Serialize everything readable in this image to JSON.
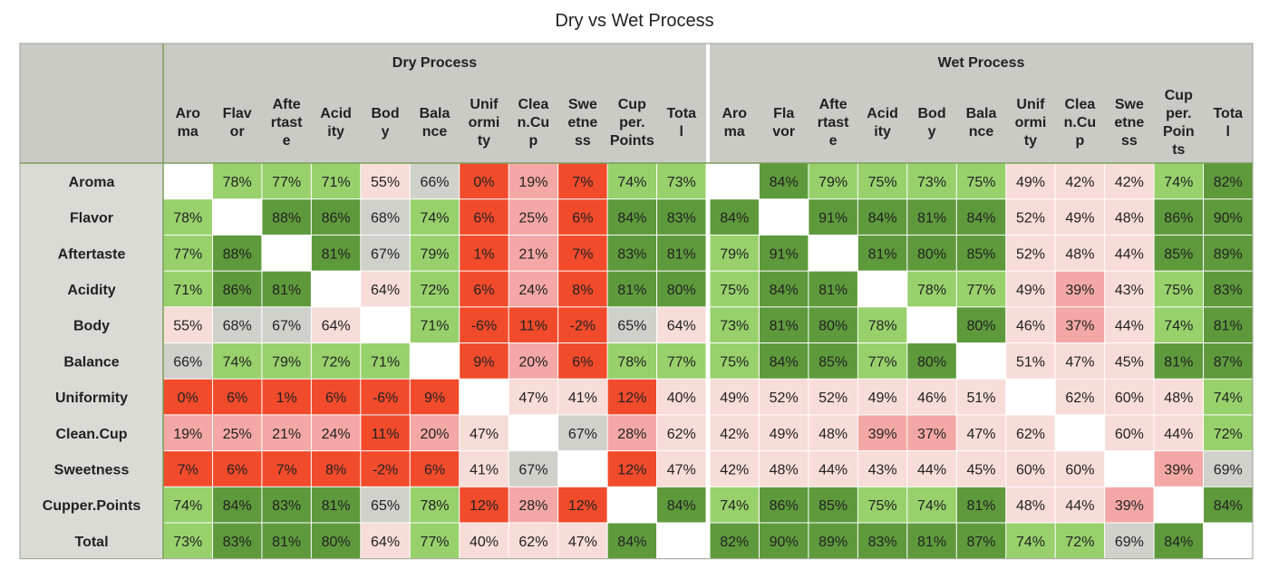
{
  "chart_data": {
    "type": "heatmap",
    "title": "Dry vs Wet Process",
    "groups": [
      {
        "name": "Dry Process",
        "columns": [
          "Aroma",
          "Flavor",
          "Aftertaste",
          "Acidity",
          "Body",
          "Balance",
          "Uniformity",
          "Clean.Cup",
          "Sweetness",
          "Cupper.Points",
          "Total"
        ],
        "values": [
          [
            null,
            78,
            77,
            71,
            55,
            66,
            0,
            19,
            7,
            74,
            73
          ],
          [
            78,
            null,
            88,
            86,
            68,
            74,
            6,
            25,
            6,
            84,
            83
          ],
          [
            77,
            88,
            null,
            81,
            67,
            79,
            1,
            21,
            7,
            83,
            81
          ],
          [
            71,
            86,
            81,
            null,
            64,
            72,
            6,
            24,
            8,
            81,
            80
          ],
          [
            55,
            68,
            67,
            64,
            null,
            71,
            -6,
            11,
            -2,
            65,
            64
          ],
          [
            66,
            74,
            79,
            72,
            71,
            null,
            9,
            20,
            6,
            78,
            77
          ],
          [
            0,
            6,
            1,
            6,
            -6,
            9,
            null,
            47,
            41,
            12,
            40
          ],
          [
            19,
            25,
            21,
            24,
            11,
            20,
            47,
            null,
            67,
            28,
            62
          ],
          [
            7,
            6,
            7,
            8,
            -2,
            6,
            41,
            67,
            null,
            12,
            47
          ],
          [
            74,
            84,
            83,
            81,
            65,
            78,
            12,
            28,
            12,
            null,
            84
          ],
          [
            73,
            83,
            81,
            80,
            64,
            77,
            40,
            62,
            47,
            84,
            null
          ]
        ]
      },
      {
        "name": "Wet Process",
        "columns": [
          "Aroma",
          "Flavor",
          "Aftertaste",
          "Acidity",
          "Body",
          "Balance",
          "Uniformity",
          "Clean.Cup",
          "Sweetness",
          "Cupper.Points",
          "Total"
        ],
        "values": [
          [
            null,
            84,
            79,
            75,
            73,
            75,
            49,
            42,
            42,
            74,
            82
          ],
          [
            84,
            null,
            91,
            84,
            81,
            84,
            52,
            49,
            48,
            86,
            90
          ],
          [
            79,
            91,
            null,
            81,
            80,
            85,
            52,
            48,
            44,
            85,
            89
          ],
          [
            75,
            84,
            81,
            null,
            78,
            77,
            49,
            39,
            43,
            75,
            83
          ],
          [
            73,
            81,
            80,
            78,
            null,
            80,
            46,
            37,
            44,
            74,
            81
          ],
          [
            75,
            84,
            85,
            77,
            80,
            null,
            51,
            47,
            45,
            81,
            87
          ],
          [
            49,
            52,
            52,
            49,
            46,
            51,
            null,
            62,
            60,
            48,
            74
          ],
          [
            42,
            49,
            48,
            39,
            37,
            47,
            62,
            null,
            60,
            44,
            72
          ],
          [
            42,
            48,
            44,
            43,
            44,
            45,
            60,
            60,
            null,
            39,
            69
          ],
          [
            74,
            86,
            85,
            75,
            74,
            81,
            48,
            44,
            39,
            null,
            84
          ],
          [
            82,
            90,
            89,
            83,
            81,
            87,
            74,
            72,
            69,
            84,
            null
          ]
        ]
      }
    ],
    "rows": [
      "Aroma",
      "Flavor",
      "Aftertaste",
      "Acidity",
      "Body",
      "Balance",
      "Uniformity",
      "Clean.Cup",
      "Sweetness",
      "Cupper.Points",
      "Total"
    ],
    "value_format": "percent",
    "colors": {
      "header_bg": "#c9cbc4",
      "row_label_bg": "#d9dbd4",
      "very_high": "#5e9a3c",
      "high": "#98d16c",
      "mid": "#cfd1ca",
      "mid_low": "#f7dcd8",
      "low_pink": "#f4a8a6",
      "low_red": "#f24b2c",
      "empty": "#ffffff"
    }
  }
}
